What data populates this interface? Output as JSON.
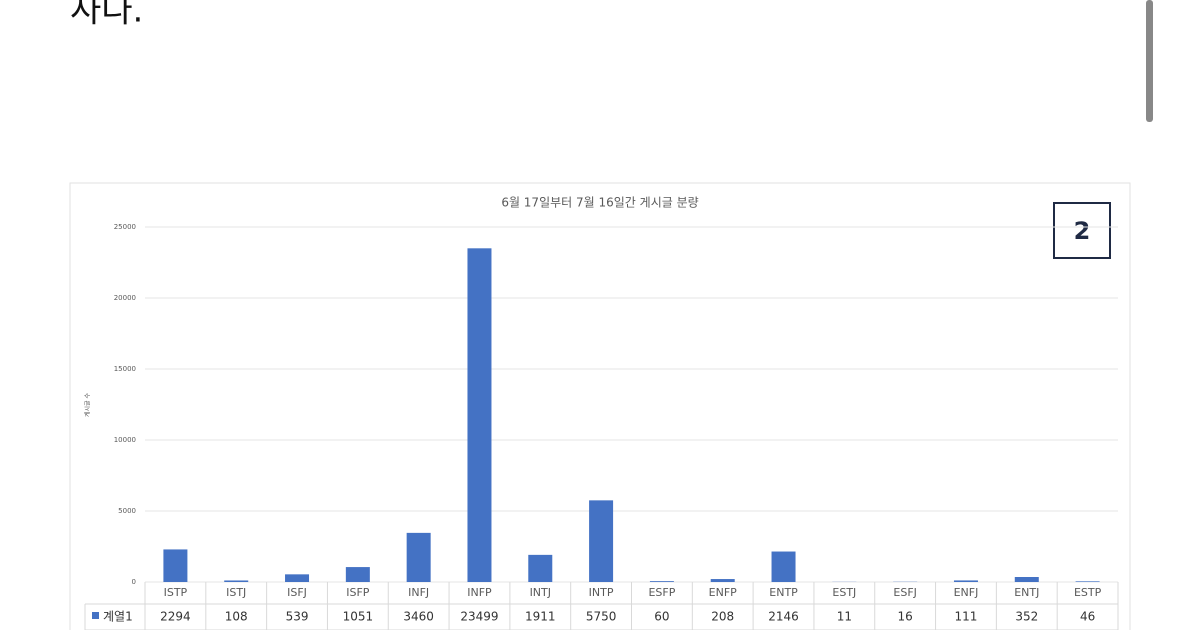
{
  "header": {
    "text": "사다."
  },
  "chart_data": {
    "type": "bar",
    "title": "6월 17일부터 7월 16일간 게시글 분량",
    "annotation": "2",
    "y_label": "게시글 수",
    "categories": [
      "ISTP",
      "ISTJ",
      "ISFJ",
      "ISFP",
      "INFJ",
      "INFP",
      "INTJ",
      "INTP",
      "ESFP",
      "ENFP",
      "ENTP",
      "ESTJ",
      "ESFJ",
      "ENFJ",
      "ENTJ",
      "ESTP"
    ],
    "series": [
      {
        "name": "계열1",
        "color": "#4472c4",
        "values": [
          2294,
          108,
          539,
          1051,
          3460,
          23499,
          1911,
          5750,
          60,
          208,
          2146,
          11,
          16,
          111,
          352,
          46
        ]
      }
    ],
    "ylim": [
      0,
      25000
    ],
    "yticks": [
      0,
      5000,
      10000,
      15000,
      20000,
      25000
    ],
    "grid": true
  }
}
